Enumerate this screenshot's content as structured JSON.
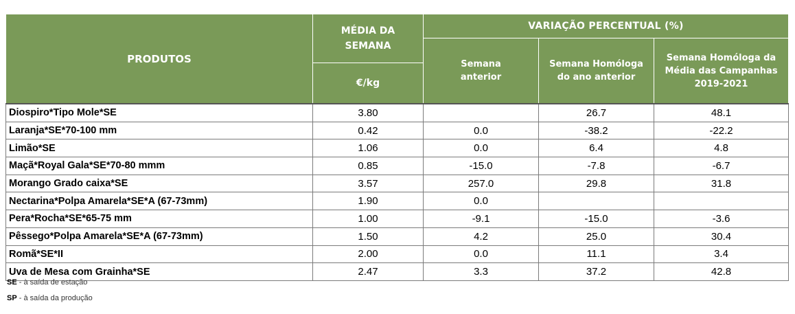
{
  "header": {
    "produtos": "PRODUTOS",
    "media_line1": "MÉDIA DA",
    "media_line2": "SEMANA",
    "unit": "€/kg",
    "variacao": "VARIAÇÃO PERCENTUAL (%)",
    "sub1_line1": "Semana",
    "sub1_line2": "anterior",
    "sub2_line1": "Semana Homóloga",
    "sub2_line2": "do ano anterior",
    "sub3_line1": "Semana Homóloga da",
    "sub3_line2": "Média das Campanhas",
    "sub3_line3": "2019-2021"
  },
  "rows": [
    {
      "produto": "Diospiro*Tipo Mole*SE",
      "media": "3.80",
      "anterior": "",
      "homologa": "26.7",
      "campanhas": "48.1"
    },
    {
      "produto": "Laranja*SE*70-100 mm",
      "media": "0.42",
      "anterior": "0.0",
      "homologa": "-38.2",
      "campanhas": "-22.2"
    },
    {
      "produto": "Limão*SE",
      "media": "1.06",
      "anterior": "0.0",
      "homologa": "6.4",
      "campanhas": "4.8"
    },
    {
      "produto": "Maçã*Royal Gala*SE*70-80 mmm",
      "media": "0.85",
      "anterior": "-15.0",
      "homologa": "-7.8",
      "campanhas": "-6.7"
    },
    {
      "produto": "Morango Grado caixa*SE",
      "media": "3.57",
      "anterior": "257.0",
      "homologa": "29.8",
      "campanhas": "31.8"
    },
    {
      "produto": "Nectarina*Polpa Amarela*SE*A (67-73mm)",
      "media": "1.90",
      "anterior": "0.0",
      "homologa": "",
      "campanhas": ""
    },
    {
      "produto": "Pera*Rocha*SE*65-75 mm",
      "media": "1.00",
      "anterior": "-9.1",
      "homologa": "-15.0",
      "campanhas": "-3.6"
    },
    {
      "produto": "Pêssego*Polpa Amarela*SE*A (67-73mm)",
      "media": "1.50",
      "anterior": "4.2",
      "homologa": "25.0",
      "campanhas": "30.4"
    },
    {
      "produto": "Romã*SE*II",
      "media": "2.00",
      "anterior": "0.0",
      "homologa": "11.1",
      "campanhas": "3.4"
    },
    {
      "produto": "Uva de Mesa com Grainha*SE",
      "media": "2.47",
      "anterior": "3.3",
      "homologa": "37.2",
      "campanhas": "42.8"
    }
  ],
  "footnotes": {
    "se_abbr": "SE",
    "se_text": " - à saída de estação",
    "sp_abbr": "SP",
    "sp_text": " - à saída da produção"
  },
  "colors": {
    "header_bg": "#7a9a58",
    "header_text": "#ffffff"
  }
}
